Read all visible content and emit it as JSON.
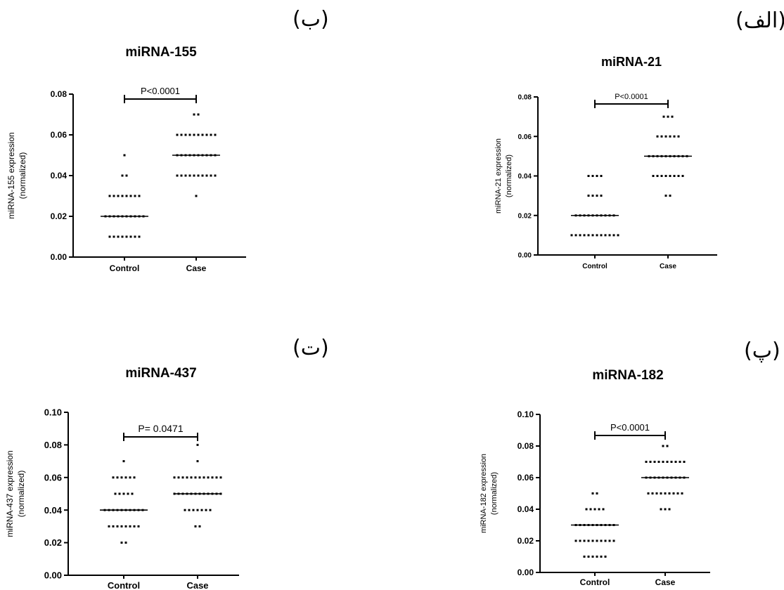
{
  "panel_letters": {
    "a": "(الف)",
    "b": "(ب)",
    "c": "(پ)",
    "d": "(ت)"
  },
  "chart_data": [
    {
      "type": "scatter",
      "id": "a",
      "title": "miRNA-21",
      "ylabel_line1": "miRNA-21 expression",
      "ylabel_line2": "(normalized)",
      "categories": [
        "Control",
        "Case"
      ],
      "ylim": [
        0,
        0.08
      ],
      "yticks": [
        "0.00",
        "0.02",
        "0.04",
        "0.06",
        "0.08"
      ],
      "pvalue": "P<0.0001",
      "series": [
        {
          "category": "Control",
          "median": 0.02,
          "points": [
            {
              "y": 0.04,
              "n": 4
            },
            {
              "y": 0.03,
              "n": 4
            },
            {
              "y": 0.02,
              "n": 10
            },
            {
              "y": 0.01,
              "n": 12
            }
          ]
        },
        {
          "category": "Case",
          "median": 0.05,
          "points": [
            {
              "y": 0.07,
              "n": 3
            },
            {
              "y": 0.06,
              "n": 6
            },
            {
              "y": 0.05,
              "n": 10
            },
            {
              "y": 0.04,
              "n": 8
            },
            {
              "y": 0.03,
              "n": 2
            }
          ]
        }
      ]
    },
    {
      "type": "scatter",
      "id": "b",
      "title": "miRNA-155",
      "ylabel_line1": "miRNA-155 expression",
      "ylabel_line2": "(normalized)",
      "categories": [
        "Control",
        "Case"
      ],
      "ylim": [
        0,
        0.08
      ],
      "yticks": [
        "0.00",
        "0.02",
        "0.04",
        "0.06",
        "0.08"
      ],
      "pvalue": "P<0.0001",
      "series": [
        {
          "category": "Control",
          "median": 0.02,
          "points": [
            {
              "y": 0.05,
              "n": 1
            },
            {
              "y": 0.04,
              "n": 2
            },
            {
              "y": 0.03,
              "n": 8
            },
            {
              "y": 0.02,
              "n": 10
            },
            {
              "y": 0.01,
              "n": 8
            }
          ]
        },
        {
          "category": "Case",
          "median": 0.05,
          "points": [
            {
              "y": 0.07,
              "n": 2
            },
            {
              "y": 0.06,
              "n": 10
            },
            {
              "y": 0.05,
              "n": 10
            },
            {
              "y": 0.04,
              "n": 10
            },
            {
              "y": 0.03,
              "n": 1
            }
          ]
        }
      ]
    },
    {
      "type": "scatter",
      "id": "c",
      "title": "miRNA-182",
      "ylabel_line1": "miRNA-182 expression",
      "ylabel_line2": "(normalized)",
      "categories": [
        "Control",
        "Case"
      ],
      "ylim": [
        0,
        0.1
      ],
      "yticks": [
        "0.00",
        "0.02",
        "0.04",
        "0.06",
        "0.08",
        "0.10"
      ],
      "pvalue": "P<0.0001",
      "series": [
        {
          "category": "Control",
          "median": 0.03,
          "points": [
            {
              "y": 0.05,
              "n": 2
            },
            {
              "y": 0.04,
              "n": 5
            },
            {
              "y": 0.03,
              "n": 10
            },
            {
              "y": 0.02,
              "n": 10
            },
            {
              "y": 0.01,
              "n": 6
            }
          ]
        },
        {
          "category": "Case",
          "median": 0.06,
          "points": [
            {
              "y": 0.08,
              "n": 2
            },
            {
              "y": 0.07,
              "n": 10
            },
            {
              "y": 0.06,
              "n": 10
            },
            {
              "y": 0.05,
              "n": 9
            },
            {
              "y": 0.04,
              "n": 3
            }
          ]
        }
      ]
    },
    {
      "type": "scatter",
      "id": "d",
      "title": "miRNA-437",
      "ylabel_line1": "miRNA-437 expression",
      "ylabel_line2": "(normalized)",
      "categories": [
        "Control",
        "Case"
      ],
      "ylim": [
        0,
        0.1
      ],
      "yticks": [
        "0.00",
        "0.02",
        "0.04",
        "0.06",
        "0.08",
        "0.10"
      ],
      "pvalue": "P= 0.0471",
      "series": [
        {
          "category": "Control",
          "median": 0.04,
          "points": [
            {
              "y": 0.07,
              "n": 1
            },
            {
              "y": 0.06,
              "n": 6
            },
            {
              "y": 0.05,
              "n": 5
            },
            {
              "y": 0.04,
              "n": 10
            },
            {
              "y": 0.03,
              "n": 8
            },
            {
              "y": 0.02,
              "n": 2
            }
          ]
        },
        {
          "category": "Case",
          "median": 0.05,
          "points": [
            {
              "y": 0.08,
              "n": 1
            },
            {
              "y": 0.07,
              "n": 1
            },
            {
              "y": 0.06,
              "n": 12
            },
            {
              "y": 0.05,
              "n": 12
            },
            {
              "y": 0.04,
              "n": 7
            },
            {
              "y": 0.03,
              "n": 2
            }
          ]
        }
      ]
    }
  ]
}
